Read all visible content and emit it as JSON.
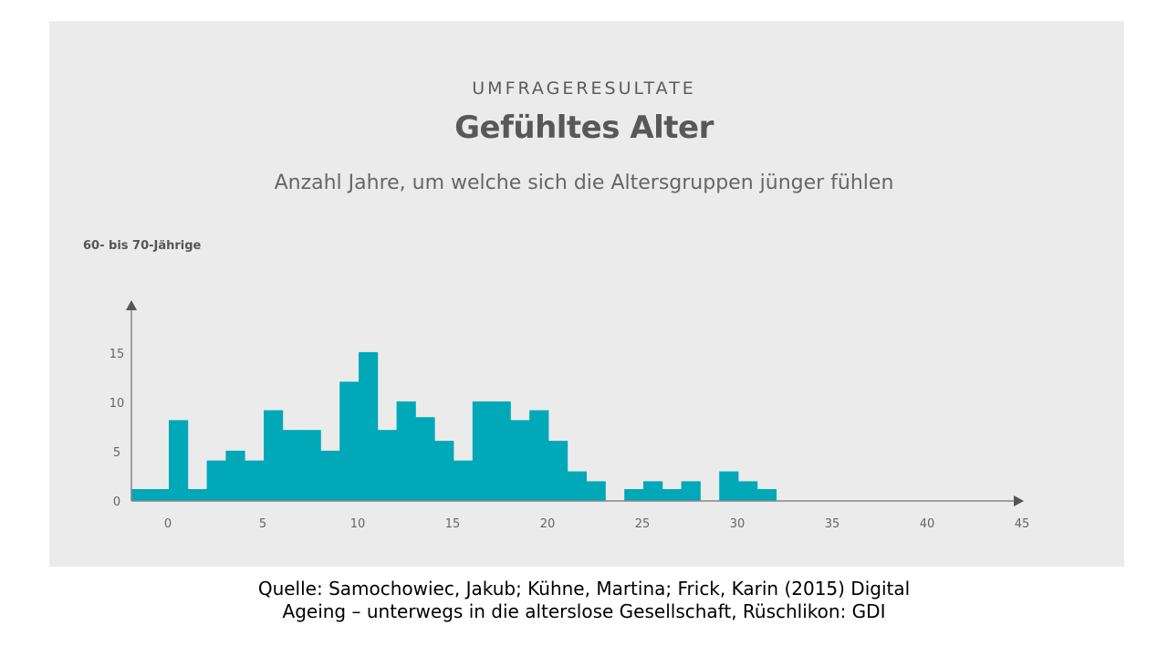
{
  "chart_data": {
    "type": "bar",
    "kicker": "UMFRAGERESULTATE",
    "title": "Gefühltes Alter",
    "subtitle": "Anzahl Jahre, um welche sich die Altersgruppen jünger fühlen",
    "group_label": "60- bis 70-Jährige",
    "bar_color": "#00a8b8",
    "x_ticks": [
      0,
      5,
      10,
      15,
      20,
      25,
      30,
      35,
      40,
      45
    ],
    "y_ticks": [
      0,
      5,
      10,
      15
    ],
    "xlim": [
      -2,
      45
    ],
    "ylim": [
      0,
      15
    ],
    "bars": [
      {
        "x": -2,
        "y": 1.2
      },
      {
        "x": -1,
        "y": 1.2
      },
      {
        "x": 0,
        "y": 8.2
      },
      {
        "x": 1,
        "y": 1.2
      },
      {
        "x": 2,
        "y": 4.1
      },
      {
        "x": 3,
        "y": 5.1
      },
      {
        "x": 4,
        "y": 4.1
      },
      {
        "x": 5,
        "y": 9.2
      },
      {
        "x": 6,
        "y": 7.2
      },
      {
        "x": 7,
        "y": 7.2
      },
      {
        "x": 8,
        "y": 5.1
      },
      {
        "x": 9,
        "y": 12.1
      },
      {
        "x": 10,
        "y": 15.1
      },
      {
        "x": 11,
        "y": 7.2
      },
      {
        "x": 12,
        "y": 10.1
      },
      {
        "x": 13,
        "y": 8.5
      },
      {
        "x": 14,
        "y": 6.1
      },
      {
        "x": 15,
        "y": 4.1
      },
      {
        "x": 16,
        "y": 10.1
      },
      {
        "x": 17,
        "y": 10.1
      },
      {
        "x": 18,
        "y": 8.2
      },
      {
        "x": 19,
        "y": 9.2
      },
      {
        "x": 20,
        "y": 6.1
      },
      {
        "x": 21,
        "y": 3.0
      },
      {
        "x": 22,
        "y": 2.0
      },
      {
        "x": 24,
        "y": 1.2
      },
      {
        "x": 25,
        "y": 2.0
      },
      {
        "x": 26,
        "y": 1.2
      },
      {
        "x": 27,
        "y": 2.0
      },
      {
        "x": 29,
        "y": 3.0
      },
      {
        "x": 30,
        "y": 2.0
      },
      {
        "x": 31,
        "y": 1.2
      }
    ]
  },
  "source": {
    "line1": "Quelle: Samochowiec, Jakub; Kühne, Martina; Frick, Karin (2015) Digital",
    "line2": "Ageing – unterwegs in die alterslose Gesellschaft, Rüschlikon: GDI"
  }
}
